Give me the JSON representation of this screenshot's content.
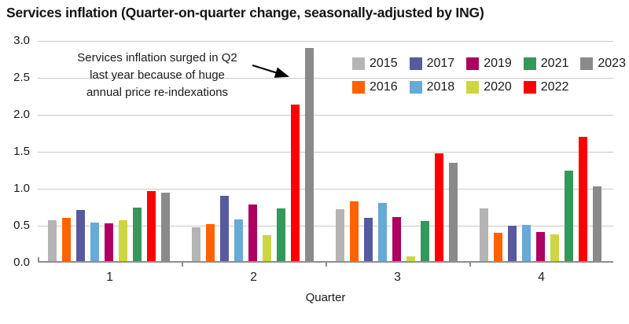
{
  "title": "Services inflation (Quarter-on-quarter change, seasonally-adjusted by ING)",
  "annotation": {
    "lines": [
      "Services inflation surged in Q2",
      "last year because of huge",
      "annual price re-indexations"
    ]
  },
  "chart_data": {
    "type": "bar",
    "title": "Services inflation (Quarter-on-quarter change, seasonally-adjusted by ING)",
    "xlabel": "Quarter",
    "ylabel": "",
    "ylim": [
      0,
      3.0
    ],
    "yticks": [
      "0.0",
      "0.5",
      "1.0",
      "1.5",
      "2.0",
      "2.5",
      "3.0"
    ],
    "grid": true,
    "categories": [
      "1",
      "2",
      "3",
      "4"
    ],
    "series": [
      {
        "name": "2015",
        "color": "#b4b4b4",
        "values": [
          0.57,
          0.48,
          0.72,
          0.73
        ]
      },
      {
        "name": "2016",
        "color": "#ff6200",
        "values": [
          0.61,
          0.52,
          0.83,
          0.4
        ]
      },
      {
        "name": "2017",
        "color": "#575aa0",
        "values": [
          0.71,
          0.9,
          0.61,
          0.5
        ]
      },
      {
        "name": "2018",
        "color": "#66aad8",
        "values": [
          0.54,
          0.59,
          0.81,
          0.51
        ]
      },
      {
        "name": "2019",
        "color": "#ae0061",
        "values": [
          0.53,
          0.79,
          0.62,
          0.42
        ]
      },
      {
        "name": "2020",
        "color": "#cfd53e",
        "values": [
          0.57,
          0.37,
          0.08,
          0.38
        ]
      },
      {
        "name": "2021",
        "color": "#35985a",
        "values": [
          0.75,
          0.73,
          0.56,
          1.24
        ]
      },
      {
        "name": "2022",
        "color": "#ff0000",
        "values": [
          0.97,
          2.14,
          1.48,
          1.7
        ]
      },
      {
        "name": "2023",
        "color": "#8a8a8a",
        "values": [
          0.95,
          2.9,
          1.35,
          1.03
        ]
      }
    ],
    "legend_rows": [
      [
        "2015",
        "2017",
        "2019",
        "2021",
        "2023"
      ],
      [
        "2016",
        "2018",
        "2020",
        "2022"
      ]
    ],
    "legend_position": "top-right"
  },
  "colors": {
    "background": "#ffffff",
    "gridline": "#c9c9c9",
    "axis": "#8e8e8e",
    "text": "#1a1a1a",
    "arrow": "#000000"
  }
}
